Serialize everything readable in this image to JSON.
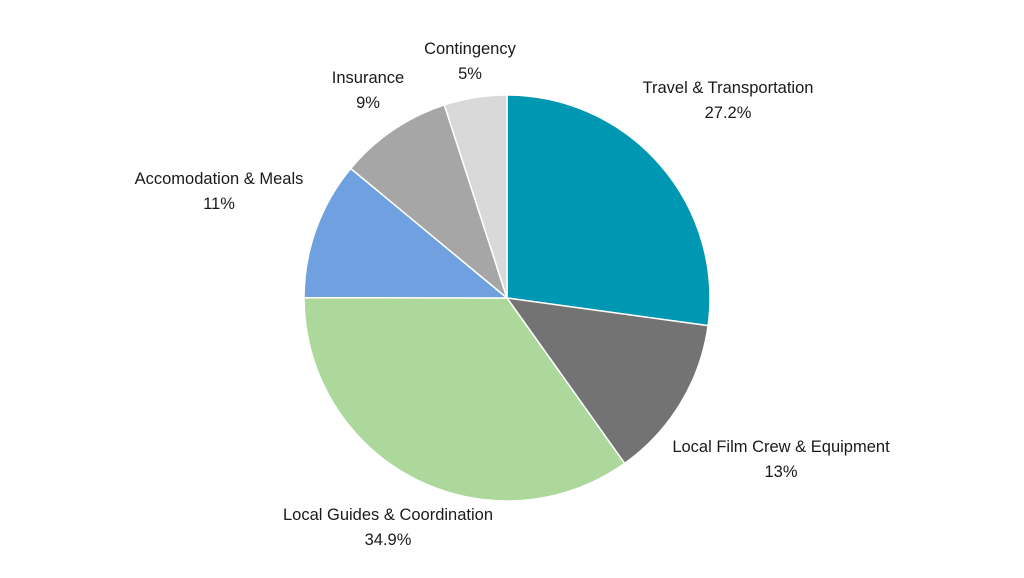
{
  "chart_data": {
    "type": "pie",
    "title": "",
    "start_angle_deg": 0,
    "direction": "clockwise",
    "slices": [
      {
        "name": "Travel & Transportation",
        "value": 27.2,
        "label": "27.2%",
        "color": "#0097b2"
      },
      {
        "name": "Local Film Crew & Equipment",
        "value": 13,
        "label": "13%",
        "color": "#737373"
      },
      {
        "name": "Local Guides & Coordination",
        "value": 34.9,
        "label": "34.9%",
        "color": "#acd89b"
      },
      {
        "name": "Accomodation & Meals",
        "value": 11,
        "label": "11%",
        "color": "#6fa1e0"
      },
      {
        "name": "Insurance",
        "value": 9,
        "label": "9%",
        "color": "#a6a6a6"
      },
      {
        "name": "Contingency",
        "value": 5,
        "label": "5%",
        "color": "#d9d9d9"
      }
    ]
  }
}
